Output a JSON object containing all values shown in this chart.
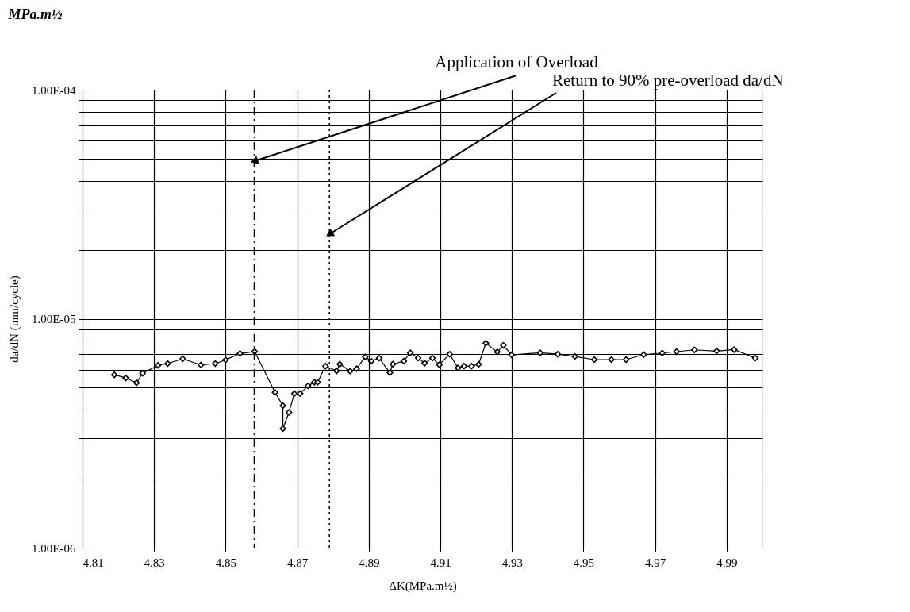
{
  "chart_data": {
    "type": "line",
    "title": "MPa.m½",
    "xlabel": "ΔK(MPa.m½)",
    "ylabel": "da/dN (mm/cycle)",
    "log": "y",
    "grid": true,
    "marker": "diamond",
    "line_style": "solid",
    "xlim": [
      4.81,
      5.0
    ],
    "xticks": [
      4.81,
      4.83,
      4.85,
      4.87,
      4.89,
      4.91,
      4.93,
      4.95,
      4.97,
      4.99
    ],
    "ylim": [
      1e-06,
      0.0001
    ],
    "yticks": [
      {
        "value": 1e-06,
        "label": "1.00E-06"
      },
      {
        "value": 2e-06,
        "label": null
      },
      {
        "value": 3e-06,
        "label": null
      },
      {
        "value": 4e-06,
        "label": null
      },
      {
        "value": 5e-06,
        "label": null
      },
      {
        "value": 6e-06,
        "label": null
      },
      {
        "value": 7e-06,
        "label": null
      },
      {
        "value": 8e-06,
        "label": null
      },
      {
        "value": 9e-06,
        "label": null
      },
      {
        "value": 1e-05,
        "label": "1.00E-05"
      },
      {
        "value": 2e-05,
        "label": null
      },
      {
        "value": 3e-05,
        "label": null
      },
      {
        "value": 4e-05,
        "label": null
      },
      {
        "value": 5e-05,
        "label": null
      },
      {
        "value": 6e-05,
        "label": null
      },
      {
        "value": 7e-05,
        "label": null
      },
      {
        "value": 8e-05,
        "label": null
      },
      {
        "value": 9e-05,
        "label": null
      },
      {
        "value": 0.0001,
        "label": "1.00E-04"
      }
    ],
    "ref_lines": [
      {
        "axis": "x",
        "value": 4.858,
        "label": "Application of Overload",
        "line_style": "dashed",
        "color": "#000000"
      },
      {
        "axis": "x",
        "value": 4.879,
        "label": "Return to 90% pre-overload da/dN",
        "line_style": "dotted",
        "color": "#000000"
      }
    ],
    "series": [
      {
        "color": "#000000",
        "x": [
          4.8189,
          4.8221,
          4.8251,
          4.8268,
          4.8311,
          4.8338,
          4.838,
          4.8431,
          4.8471,
          4.85,
          4.854,
          4.8581,
          4.8638,
          4.866,
          4.866,
          4.8677,
          4.8692,
          4.8708,
          4.873,
          4.8748,
          4.8757,
          4.8779,
          4.881,
          4.8819,
          4.8848,
          4.8866,
          4.889,
          4.8907,
          4.8929,
          4.8959,
          4.8967,
          4.8998,
          4.9016,
          4.9038,
          4.9056,
          4.9078,
          4.9097,
          4.9126,
          4.9149,
          4.9166,
          4.9187,
          4.9207,
          4.9227,
          4.9259,
          4.9276,
          4.9299,
          4.9379,
          4.9428,
          4.9476,
          4.953,
          4.9578,
          4.9619,
          4.9668,
          4.972,
          4.976,
          4.981,
          4.9872,
          4.9921,
          4.998
        ],
        "values": [
          5.69e-06,
          5.51e-06,
          5.25e-06,
          5.78e-06,
          6.26e-06,
          6.37e-06,
          6.68e-06,
          6.28e-06,
          6.37e-06,
          6.61e-06,
          7.05e-06,
          7.19e-06,
          4.77e-06,
          4.17e-06,
          3.31e-06,
          3.9e-06,
          4.71e-06,
          4.71e-06,
          5.09e-06,
          5.28e-06,
          5.28e-06,
          6.21e-06,
          5.92e-06,
          6.33e-06,
          5.9e-06,
          6.05e-06,
          6.82e-06,
          6.53e-06,
          6.73e-06,
          5.81e-06,
          6.33e-06,
          6.53e-06,
          7.1e-06,
          6.73e-06,
          6.4e-06,
          6.73e-06,
          6.3e-06,
          7e-06,
          6.1e-06,
          6.21e-06,
          6.21e-06,
          6.32e-06,
          7.82e-06,
          7.16e-06,
          7.65e-06,
          6.95e-06,
          7.1e-06,
          7e-06,
          6.84e-06,
          6.63e-06,
          6.63e-06,
          6.63e-06,
          6.97e-06,
          7.08e-06,
          7.18e-06,
          7.31e-06,
          7.22e-06,
          7.33e-06,
          6.73e-06
        ]
      }
    ]
  }
}
